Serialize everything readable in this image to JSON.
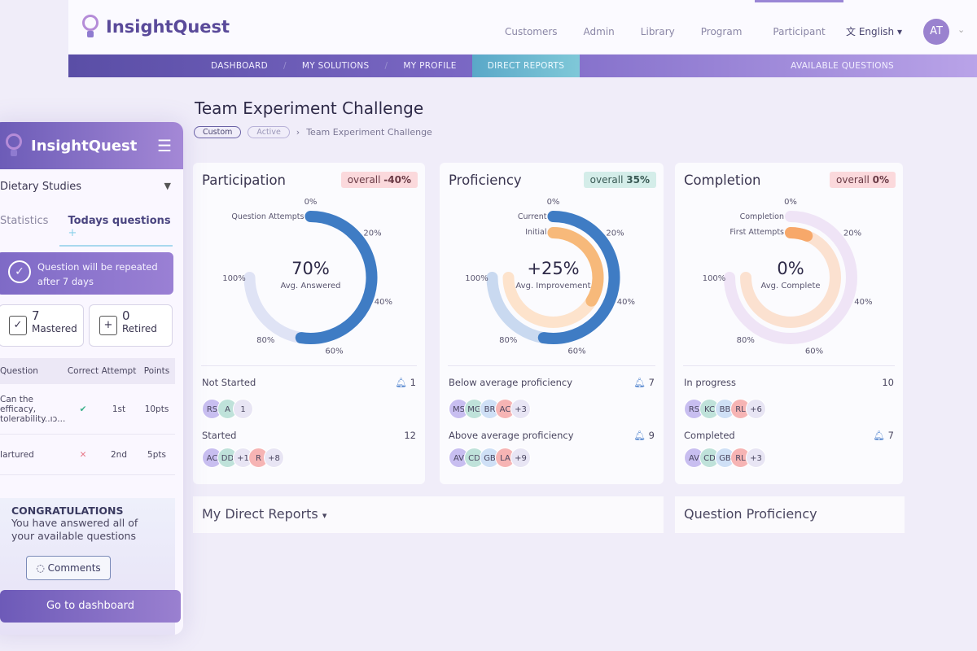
{
  "header": {
    "brand": "InsightQuest",
    "nav": [
      "Customers",
      "Admin",
      "Library",
      "Program",
      "Participant"
    ],
    "language": "English",
    "user_initials": "AT"
  },
  "subnav": {
    "items": [
      "DASHBOARD",
      "MY SOLUTIONS",
      "MY PROFILE",
      "DIRECT REPORTS"
    ],
    "right": "AVAILABLE QUESTIONS"
  },
  "page": {
    "title": "Team Experiment Challenge",
    "tags": [
      "Custom",
      "Active"
    ],
    "breadcrumb": "Team Experiment Challenge"
  },
  "cards": [
    {
      "title": "Participation",
      "badge_prefix": "overall ",
      "badge_value": "-40%",
      "big": "70%",
      "sub": "Avg. Answered",
      "legend": [
        "Question Attempts"
      ],
      "sec1": {
        "label": "Not Started",
        "count": "1",
        "avatars": [
          "RS",
          "A",
          "1"
        ]
      },
      "sec2": {
        "label": "Started",
        "count": "12",
        "avatars": [
          "AC",
          "DD",
          "+1",
          "R",
          "+8"
        ]
      }
    },
    {
      "title": "Proficiency",
      "badge_prefix": "overall ",
      "badge_value": "35%",
      "big": "+25%",
      "sub": "Avg. Improvement",
      "legend": [
        "Current",
        "Initial"
      ],
      "sec1": {
        "label": "Below average proficiency",
        "count": "7",
        "avatars": [
          "MS",
          "MG",
          "BR",
          "AC",
          "+3"
        ]
      },
      "sec2": {
        "label": "Above average proficiency",
        "count": "9",
        "avatars": [
          "AV",
          "CD",
          "GB",
          "LA",
          "+9"
        ]
      }
    },
    {
      "title": "Completion",
      "badge_prefix": "overall ",
      "badge_value": "0%",
      "big": "0%",
      "sub": "Avg. Complete",
      "legend": [
        "Completion",
        "First Attempts"
      ],
      "sec1": {
        "label": "In progress",
        "count": "10",
        "avatars": [
          "RS",
          "KC",
          "BB",
          "RL",
          "+6"
        ]
      },
      "sec2": {
        "label": "Completed",
        "count": "7",
        "avatars": [
          "AV",
          "CD",
          "GB",
          "RL",
          "+3"
        ]
      }
    }
  ],
  "chart_data": [
    {
      "type": "radial-gauge",
      "title": "Participation",
      "ticks": [
        "0%",
        "20%",
        "40%",
        "60%",
        "80%",
        "100%"
      ],
      "series": [
        {
          "name": "Question Attempts",
          "value": 70
        }
      ]
    },
    {
      "type": "radial-gauge",
      "title": "Proficiency",
      "ticks": [
        "0%",
        "20%",
        "40%",
        "60%",
        "80%",
        "100%"
      ],
      "series": [
        {
          "name": "Current",
          "value": 70
        },
        {
          "name": "Initial",
          "value": 45
        }
      ]
    },
    {
      "type": "radial-gauge",
      "title": "Completion",
      "ticks": [
        "0%",
        "20%",
        "40%",
        "60%",
        "80%",
        "100%"
      ],
      "series": [
        {
          "name": "Completion",
          "value": 0
        },
        {
          "name": "First Attempts",
          "value": 8
        }
      ]
    }
  ],
  "bottom": {
    "reports": "My Direct Reports",
    "proficiency": "Question Proficiency"
  },
  "mobile": {
    "brand": "InsightQuest",
    "select": "Dietary Studies",
    "tabs": [
      "Statistics",
      "Todays questions"
    ],
    "repeat": "Question will be repeated after 7 days",
    "mastered": {
      "n": "7",
      "label": "Mastered"
    },
    "retired": {
      "n": "0",
      "label": "Retired"
    },
    "table": {
      "headers": [
        "Question",
        "Correct",
        "Attempt",
        "Points"
      ],
      "rows": [
        {
          "q": "Can the efficacy, tolerability..ıɔ...",
          "correct": "✔",
          "attempt": "1st",
          "points": "10pts"
        },
        {
          "q": "Iartured",
          "correct": "✕",
          "attempt": "2nd",
          "points": "5pts"
        }
      ]
    },
    "congrats_title": "CONGRATULATIONS",
    "congrats_text": "You have answered all of your available questions",
    "comments": "Comments",
    "go": "Go to dashboard"
  }
}
